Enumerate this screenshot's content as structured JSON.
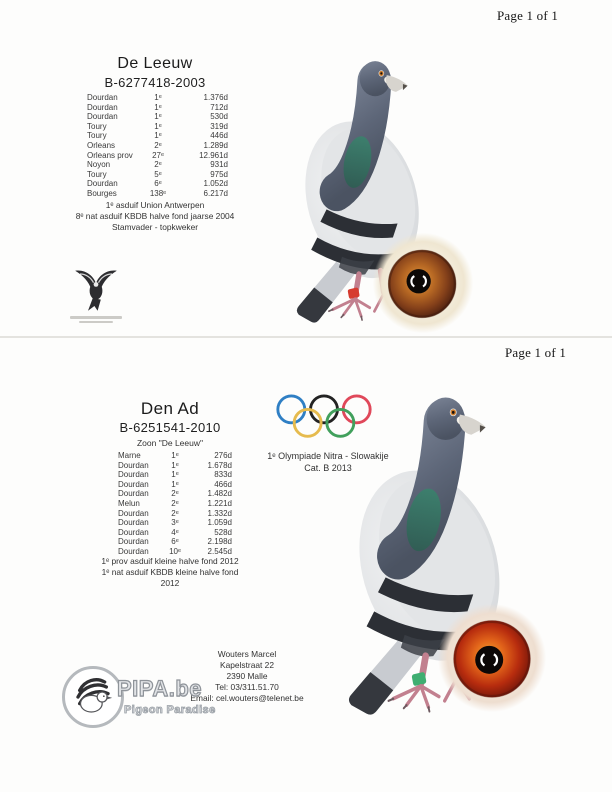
{
  "page_top": {
    "page_label": "Page 1 of 1",
    "title": "De Leeuw",
    "ring_number": "B-6277418-2003",
    "results": [
      [
        "Dourdan",
        "1ᵉ",
        "1.376d"
      ],
      [
        "Dourdan",
        "1ᵉ",
        "712d"
      ],
      [
        "Dourdan",
        "1ᵉ",
        "530d"
      ],
      [
        "Toury",
        "1ᵉ",
        "319d"
      ],
      [
        "Toury",
        "1ᵉ",
        "446d"
      ],
      [
        "Orleans",
        "2ᵉ",
        "1.289d"
      ],
      [
        "Orleans prov",
        "27ᵉ",
        "12.961d"
      ],
      [
        "Noyon",
        "2ᵉ",
        "931d"
      ],
      [
        "Toury",
        "5ᵉ",
        "975d"
      ],
      [
        "Dourdan",
        "6ᵉ",
        "1.052d"
      ],
      [
        "Bourges",
        "138ᵉ",
        "6.217d"
      ]
    ],
    "notes": [
      "1ᵉ asduif Union Antwerpen",
      "8ᵉ nat asduif KBDB halve fond jaarse 2004",
      "Stamvader - topkweker"
    ]
  },
  "page_bottom": {
    "page_label": "Page 1 of 1",
    "title": "Den Ad",
    "ring_number": "B-6251541-2010",
    "subtitle": "Zoon \"De Leeuw\"",
    "results": [
      [
        "Marne",
        "1ᵉ",
        "276d"
      ],
      [
        "Dourdan",
        "1ᵉ",
        "1.678d"
      ],
      [
        "Dourdan",
        "1ᵉ",
        "833d"
      ],
      [
        "Dourdan",
        "1ᵉ",
        "466d"
      ],
      [
        "Dourdan",
        "2ᵉ",
        "1.482d"
      ],
      [
        "Melun",
        "2ᵉ",
        "1.221d"
      ],
      [
        "Dourdan",
        "2ᵉ",
        "1.332d"
      ],
      [
        "Dourdan",
        "3ᵉ",
        "1.059d"
      ],
      [
        "Dourdan",
        "4ᵉ",
        "528d"
      ],
      [
        "Dourdan",
        "6ᵉ",
        "2.198d"
      ],
      [
        "Dourdan",
        "10ᵉ",
        "2.545d"
      ]
    ],
    "notes": [
      "1ᵉ prov asduif kleine halve fond 2012",
      "1ᵉ nat asduif KBDB kleine halve fond",
      "2012"
    ],
    "olympiad_lines": [
      "1ᵉ Olympiade Nitra - Slowakije",
      "Cat. B 2013"
    ],
    "contact_lines": [
      "Wouters Marcel",
      "Kapelstraat 22",
      "2390 Malle",
      "Tel: 03/311.51.70",
      "Email: cel.wouters@telenet.be"
    ],
    "pipa_brand": "PIPA.be",
    "pipa_tagline": "Pigeon Paradise"
  },
  "icons": {
    "flying_pigeon_logo": "flying-pigeon-emblem",
    "pipa_emblem": "dove-in-circle",
    "olympic_rings": "olympic-rings",
    "pigeon_photo_top": "racing-pigeon-standing",
    "pigeon_photo_bottom": "racing-pigeon-standing",
    "eye_photo_top": "pigeon-eye-closeup-amber",
    "eye_photo_bottom": "pigeon-eye-closeup-red"
  },
  "colors": {
    "leg_ring_top": "#d63b2f",
    "leg_ring_bottom": "#3fae71",
    "olympic_blue": "#2f7fc4",
    "olympic_black": "#232323",
    "olympic_red": "#e0485a",
    "olympic_yellow": "#e6bb4e",
    "olympic_green": "#41a05c",
    "eye_top_iris": "#b96a24",
    "eye_bottom_iris": "#d9470f"
  }
}
